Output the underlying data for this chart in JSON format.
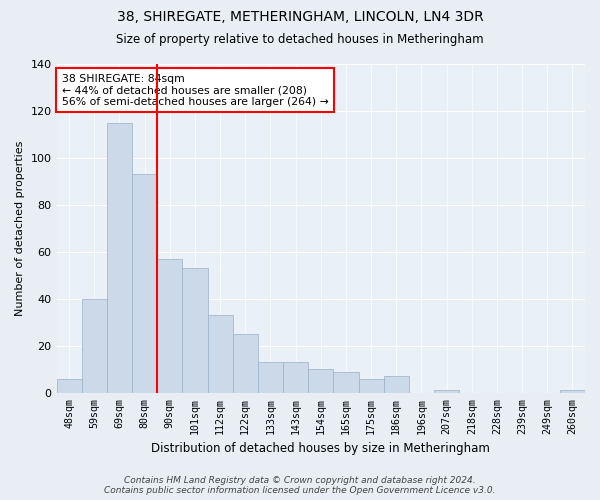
{
  "title": "38, SHIREGATE, METHERINGHAM, LINCOLN, LN4 3DR",
  "subtitle": "Size of property relative to detached houses in Metheringham",
  "xlabel": "Distribution of detached houses by size in Metheringham",
  "ylabel": "Number of detached properties",
  "bar_labels": [
    "48sqm",
    "59sqm",
    "69sqm",
    "80sqm",
    "90sqm",
    "101sqm",
    "112sqm",
    "122sqm",
    "133sqm",
    "143sqm",
    "154sqm",
    "165sqm",
    "175sqm",
    "186sqm",
    "196sqm",
    "207sqm",
    "218sqm",
    "228sqm",
    "239sqm",
    "249sqm",
    "260sqm"
  ],
  "bar_values": [
    6,
    40,
    115,
    93,
    57,
    53,
    33,
    25,
    13,
    13,
    10,
    9,
    6,
    7,
    0,
    1,
    0,
    0,
    0,
    0,
    1
  ],
  "bar_color": "#ccd9e8",
  "bar_edgecolor": "#9ab0c8",
  "vline_x": 3.5,
  "vline_color": "red",
  "annotation_title": "38 SHIREGATE: 84sqm",
  "annotation_line1": "← 44% of detached houses are smaller (208)",
  "annotation_line2": "56% of semi-detached houses are larger (264) →",
  "annotation_box_facecolor": "white",
  "annotation_box_edgecolor": "red",
  "ylim": [
    0,
    140
  ],
  "background_color": "#e8eef4",
  "plot_background": "#eaf0f8",
  "footer": "Contains HM Land Registry data © Crown copyright and database right 2024.\nContains public sector information licensed under the Open Government Licence v3.0."
}
